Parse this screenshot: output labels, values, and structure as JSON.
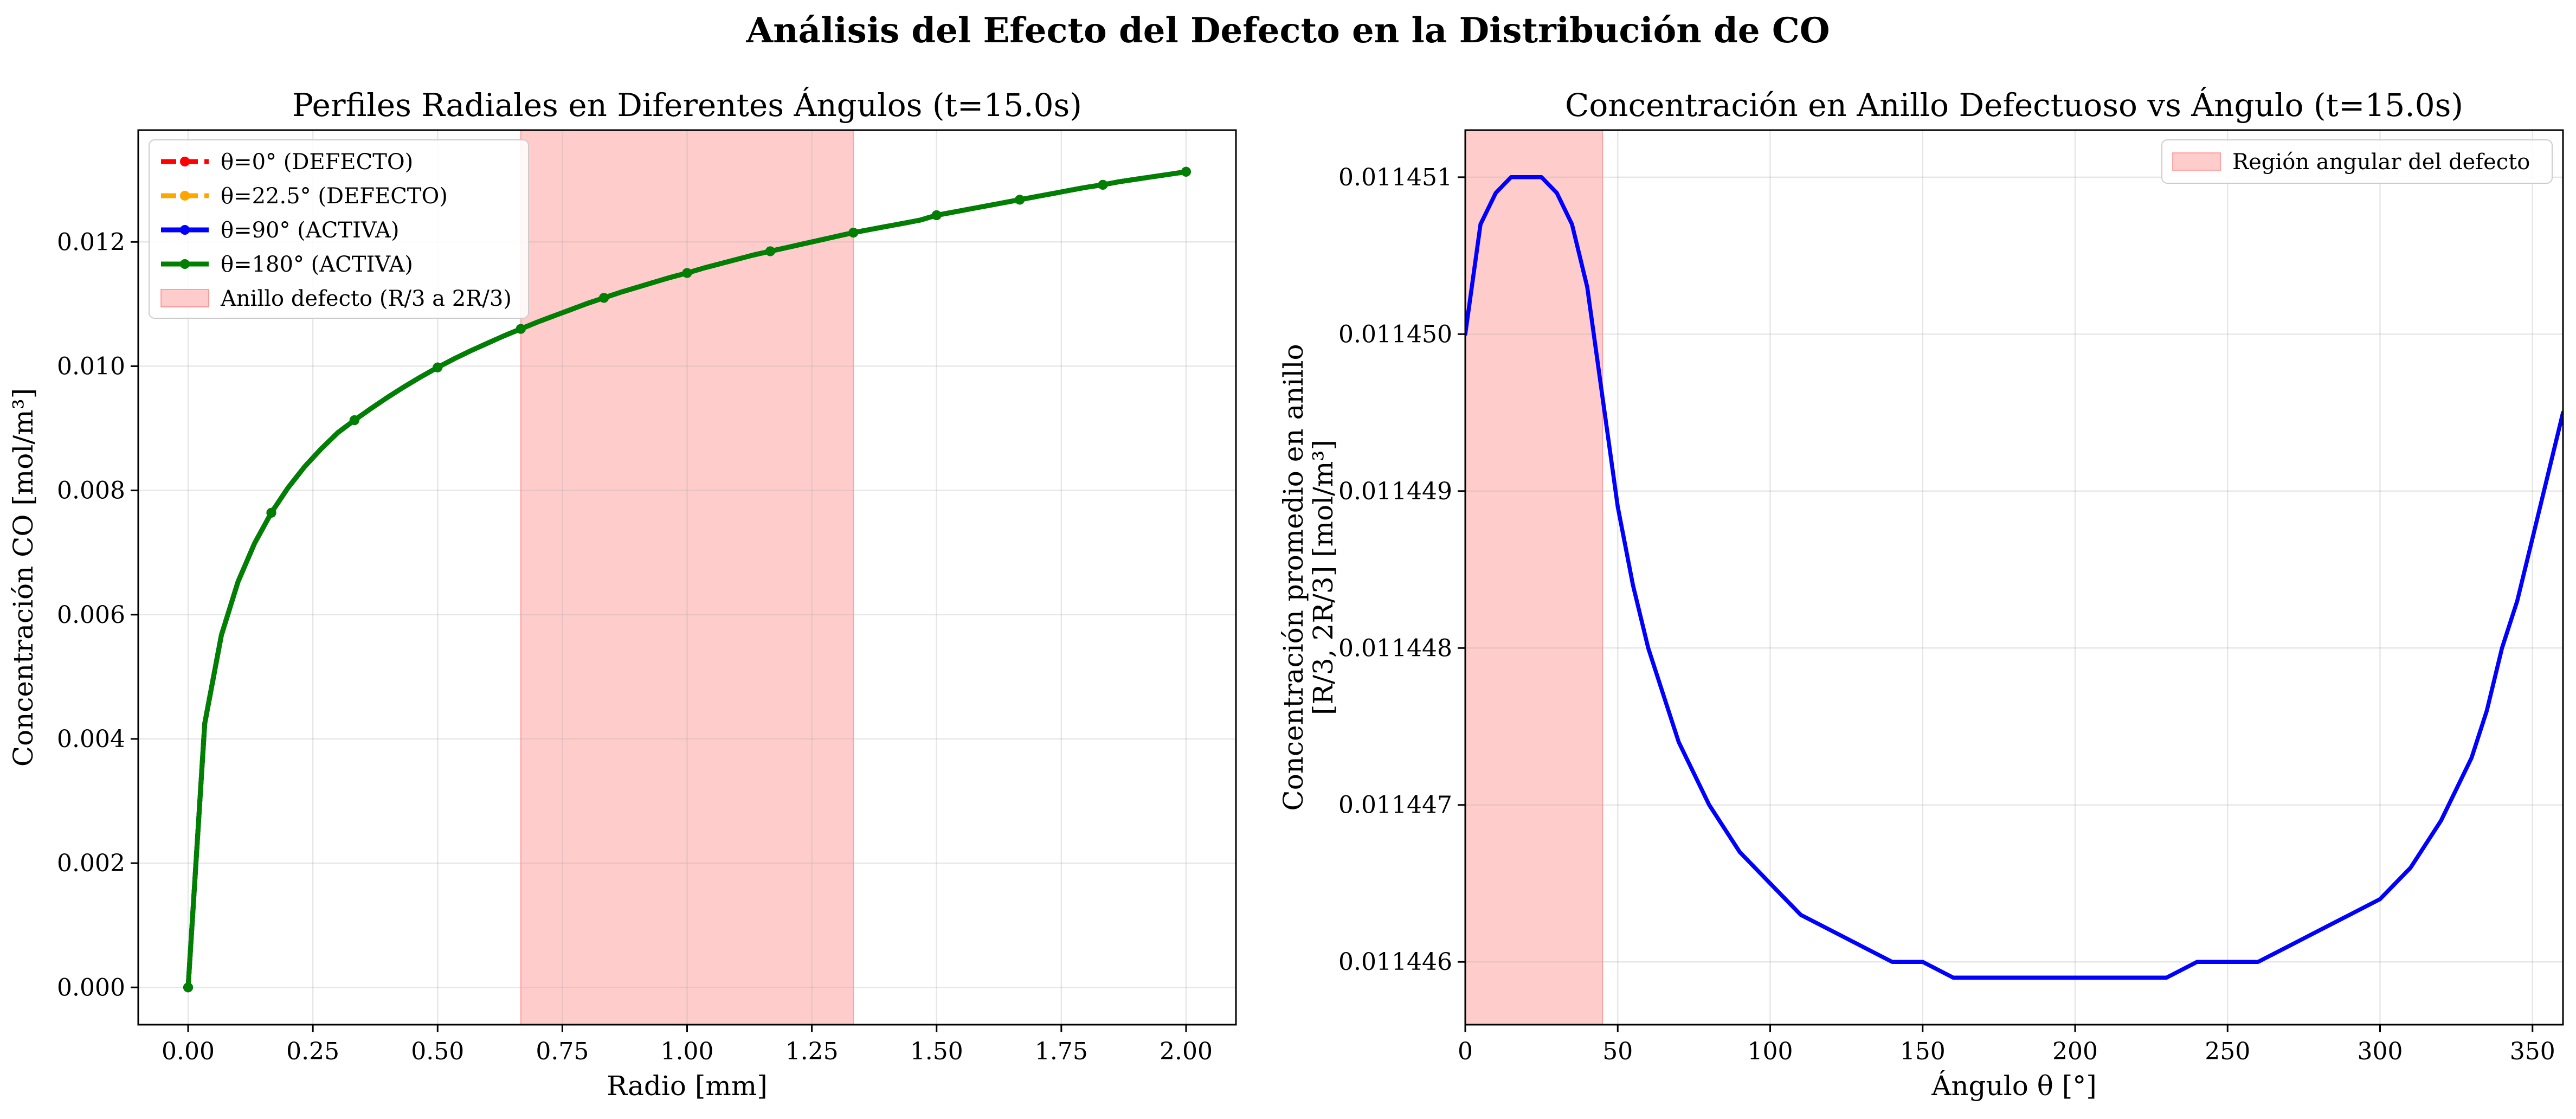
{
  "figure": {
    "title": "Análisis del Efecto del Defecto en la Distribución de CO"
  },
  "chart_data": [
    {
      "type": "line",
      "title": "Perfiles Radiales en Diferentes Ángulos (t=15.0s)",
      "xlabel": "Radio [mm]",
      "ylabel": "Concentración CO [mol/m³]",
      "xlim": [
        -0.1,
        2.1
      ],
      "ylim": [
        -0.0006,
        0.0138
      ],
      "xticks": [
        0.0,
        0.25,
        0.5,
        0.75,
        1.0,
        1.25,
        1.5,
        1.75,
        2.0
      ],
      "xtick_labels": [
        "0.00",
        "0.25",
        "0.50",
        "0.75",
        "1.00",
        "1.25",
        "1.50",
        "1.75",
        "2.00"
      ],
      "yticks": [
        0.0,
        0.002,
        0.004,
        0.006,
        0.008,
        0.01,
        0.012
      ],
      "ytick_labels": [
        "0.000",
        "0.002",
        "0.004",
        "0.006",
        "0.008",
        "0.010",
        "0.012"
      ],
      "grid": true,
      "legend_position": "upper-left",
      "shaded_region": {
        "x0": 0.6667,
        "x1": 1.3333,
        "label": "Anillo defecto (R/3 a 2R/3)",
        "color": "#ffcccc"
      },
      "x": [
        0.0,
        0.0333,
        0.0667,
        0.1,
        0.1333,
        0.1667,
        0.2,
        0.2333,
        0.2667,
        0.3,
        0.3333,
        0.3667,
        0.4,
        0.4333,
        0.4667,
        0.5,
        0.5333,
        0.5667,
        0.6,
        0.6333,
        0.6667,
        0.7,
        0.7333,
        0.7667,
        0.8,
        0.8333,
        0.8667,
        0.9,
        0.9333,
        0.9667,
        1.0,
        1.0333,
        1.0667,
        1.1,
        1.1333,
        1.1667,
        1.2,
        1.2333,
        1.2667,
        1.3,
        1.3333,
        1.3667,
        1.4,
        1.4333,
        1.4667,
        1.5,
        1.5333,
        1.5667,
        1.6,
        1.6333,
        1.6667,
        1.7,
        1.7333,
        1.7667,
        1.8,
        1.8333,
        1.8667,
        1.9,
        1.9333,
        1.9667,
        2.0
      ],
      "marker_every": 5,
      "series": [
        {
          "name": "θ=0° (DEFECTO)",
          "color": "#ff0000",
          "dash": true,
          "values": [
            0.0,
            0.00425,
            0.00567,
            0.00653,
            0.00715,
            0.00764,
            0.00804,
            0.00838,
            0.00867,
            0.00893,
            0.00913,
            0.00932,
            0.0095,
            0.00967,
            0.00983,
            0.00998,
            0.01012,
            0.01025,
            0.01037,
            0.01049,
            0.0106,
            0.01071,
            0.01081,
            0.01091,
            0.01101,
            0.0111,
            0.01119,
            0.01127,
            0.01135,
            0.01143,
            0.0115,
            0.01158,
            0.01165,
            0.01172,
            0.01179,
            0.01185,
            0.01191,
            0.01197,
            0.01203,
            0.01209,
            0.01215,
            0.0122,
            0.01225,
            0.0123,
            0.01235,
            0.01243,
            0.01248,
            0.01253,
            0.01258,
            0.01263,
            0.01268,
            0.01273,
            0.01278,
            0.01283,
            0.01288,
            0.01292,
            0.01297,
            0.01301,
            0.01305,
            0.01309,
            0.01313
          ]
        },
        {
          "name": "θ=22.5° (DEFECTO)",
          "color": "#ffa500",
          "dash": true,
          "values": [
            0.0,
            0.00425,
            0.00567,
            0.00653,
            0.00715,
            0.00764,
            0.00804,
            0.00838,
            0.00867,
            0.00893,
            0.00913,
            0.00932,
            0.0095,
            0.00967,
            0.00983,
            0.00998,
            0.01012,
            0.01025,
            0.01037,
            0.01049,
            0.0106,
            0.01071,
            0.01081,
            0.01091,
            0.01101,
            0.0111,
            0.01119,
            0.01127,
            0.01135,
            0.01143,
            0.0115,
            0.01158,
            0.01165,
            0.01172,
            0.01179,
            0.01185,
            0.01191,
            0.01197,
            0.01203,
            0.01209,
            0.01215,
            0.0122,
            0.01225,
            0.0123,
            0.01235,
            0.01243,
            0.01248,
            0.01253,
            0.01258,
            0.01263,
            0.01268,
            0.01273,
            0.01278,
            0.01283,
            0.01288,
            0.01292,
            0.01297,
            0.01301,
            0.01305,
            0.01309,
            0.01313
          ]
        },
        {
          "name": "θ=90° (ACTIVA)",
          "color": "#0000ff",
          "dash": false,
          "values": [
            0.0,
            0.00425,
            0.00567,
            0.00653,
            0.00715,
            0.00764,
            0.00804,
            0.00838,
            0.00867,
            0.00893,
            0.00913,
            0.00932,
            0.0095,
            0.00967,
            0.00983,
            0.00998,
            0.01012,
            0.01025,
            0.01037,
            0.01049,
            0.0106,
            0.01071,
            0.01081,
            0.01091,
            0.01101,
            0.0111,
            0.01119,
            0.01127,
            0.01135,
            0.01143,
            0.0115,
            0.01158,
            0.01165,
            0.01172,
            0.01179,
            0.01185,
            0.01191,
            0.01197,
            0.01203,
            0.01209,
            0.01215,
            0.0122,
            0.01225,
            0.0123,
            0.01235,
            0.01243,
            0.01248,
            0.01253,
            0.01258,
            0.01263,
            0.01268,
            0.01273,
            0.01278,
            0.01283,
            0.01288,
            0.01292,
            0.01297,
            0.01301,
            0.01305,
            0.01309,
            0.01313
          ]
        },
        {
          "name": "θ=180° (ACTIVA)",
          "color": "#008000",
          "dash": false,
          "values": [
            0.0,
            0.00425,
            0.00567,
            0.00653,
            0.00715,
            0.00764,
            0.00804,
            0.00838,
            0.00867,
            0.00893,
            0.00913,
            0.00932,
            0.0095,
            0.00967,
            0.00983,
            0.00998,
            0.01012,
            0.01025,
            0.01037,
            0.01049,
            0.0106,
            0.01071,
            0.01081,
            0.01091,
            0.01101,
            0.0111,
            0.01119,
            0.01127,
            0.01135,
            0.01143,
            0.0115,
            0.01158,
            0.01165,
            0.01172,
            0.01179,
            0.01185,
            0.01191,
            0.01197,
            0.01203,
            0.01209,
            0.01215,
            0.0122,
            0.01225,
            0.0123,
            0.01235,
            0.01243,
            0.01248,
            0.01253,
            0.01258,
            0.01263,
            0.01268,
            0.01273,
            0.01278,
            0.01283,
            0.01288,
            0.01292,
            0.01297,
            0.01301,
            0.01305,
            0.01309,
            0.01313
          ]
        }
      ]
    },
    {
      "type": "line",
      "title": "Concentración en Anillo Defectuoso vs Ángulo (t=15.0s)",
      "xlabel": "Ángulo θ [°]",
      "ylabel_lines": [
        "Concentración promedio en anillo",
        "[R/3, 2R/3] [mol/m³]"
      ],
      "xlim": [
        0,
        360
      ],
      "ylim": [
        0.0114456,
        0.0114513
      ],
      "xticks": [
        0,
        50,
        100,
        150,
        200,
        250,
        300,
        350
      ],
      "xtick_labels": [
        "0",
        "50",
        "100",
        "150",
        "200",
        "250",
        "300",
        "350"
      ],
      "yticks": [
        0.011446,
        0.011447,
        0.011448,
        0.011449,
        0.01145,
        0.011451
      ],
      "ytick_labels": [
        "0.011446",
        "0.011447",
        "0.011448",
        "0.011449",
        "0.011450",
        "0.011451"
      ],
      "grid": true,
      "legend_position": "upper-right",
      "shaded_region": {
        "x0": 0,
        "x1": 45,
        "label": "Región angular del defecto",
        "color": "#ffcccc"
      },
      "series": [
        {
          "color": "#0000ff",
          "x": [
            0,
            5,
            10,
            15,
            20,
            25,
            30,
            35,
            40,
            45,
            50,
            55,
            60,
            65,
            70,
            80,
            90,
            100,
            110,
            120,
            130,
            140,
            150,
            160,
            170,
            180,
            190,
            200,
            210,
            220,
            230,
            240,
            250,
            260,
            270,
            280,
            290,
            300,
            310,
            320,
            330,
            335,
            340,
            345,
            350,
            355,
            360
          ],
          "values": [
            0.01145,
            0.0114507,
            0.0114509,
            0.011451,
            0.011451,
            0.011451,
            0.0114509,
            0.0114507,
            0.0114503,
            0.0114496,
            0.0114489,
            0.0114484,
            0.011448,
            0.0114477,
            0.0114474,
            0.011447,
            0.0114467,
            0.0114465,
            0.0114463,
            0.0114462,
            0.0114461,
            0.011446,
            0.011446,
            0.0114459,
            0.0114459,
            0.0114459,
            0.0114459,
            0.0114459,
            0.0114459,
            0.0114459,
            0.0114459,
            0.011446,
            0.011446,
            0.011446,
            0.0114461,
            0.0114462,
            0.0114463,
            0.0114464,
            0.0114466,
            0.0114469,
            0.0114473,
            0.0114476,
            0.011448,
            0.0114483,
            0.0114487,
            0.0114491,
            0.0114495
          ]
        }
      ]
    }
  ]
}
